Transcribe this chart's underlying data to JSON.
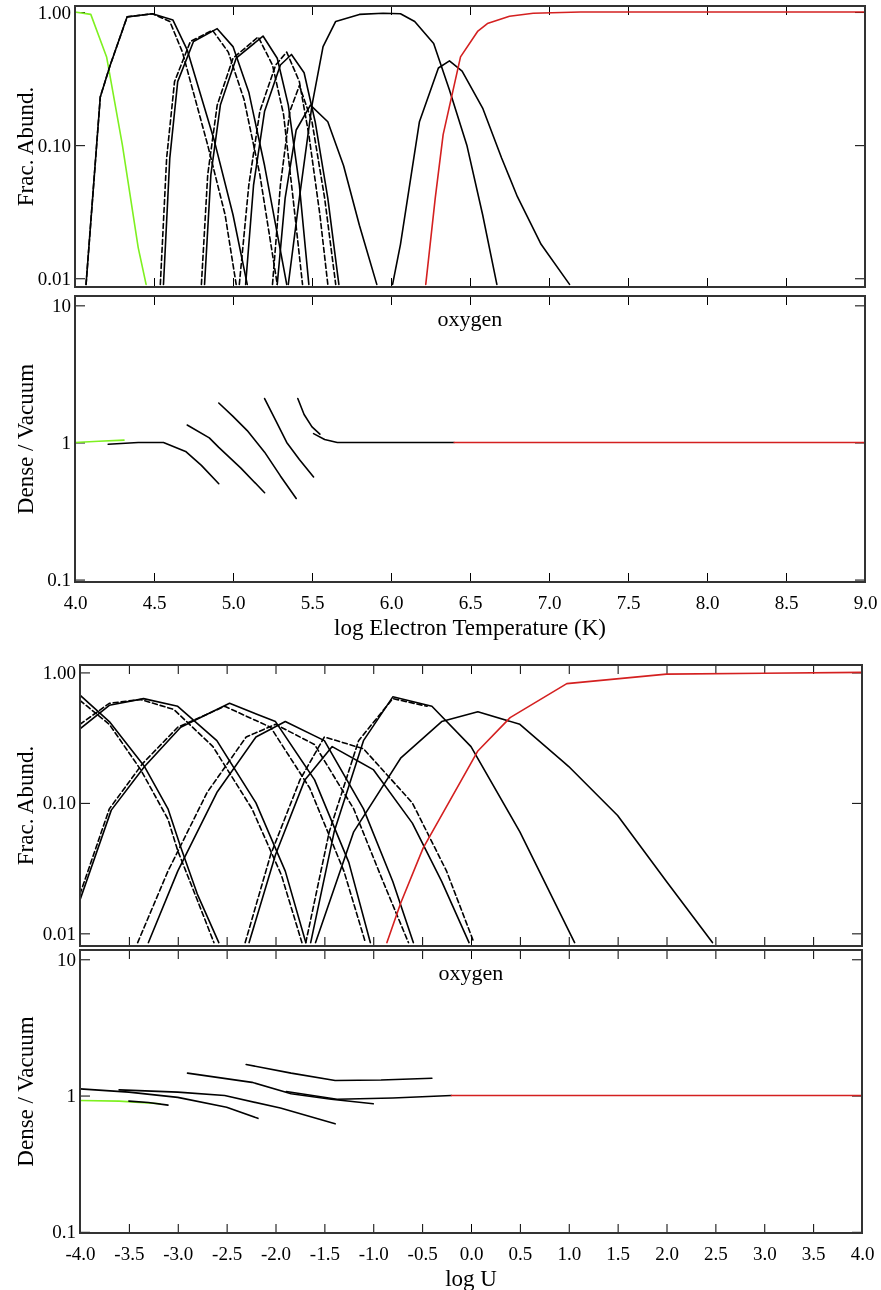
{
  "chart_data": [
    {
      "type": "line",
      "ylabel": "Frac. Abund.",
      "log": true,
      "xlim": [
        4,
        9
      ],
      "ylim": [
        0.0086,
        1.11
      ],
      "tick_labels": "y",
      "xticks": [
        {
          "value": 4,
          "label": null
        },
        {
          "value": 4.5,
          "label": null
        },
        {
          "value": 5,
          "label": null
        },
        {
          "value": 5.5,
          "label": null
        },
        {
          "value": 6,
          "label": null
        },
        {
          "value": 6.5,
          "label": null
        },
        {
          "value": 7,
          "label": null
        },
        {
          "value": 7.5,
          "label": null
        },
        {
          "value": 8,
          "label": null
        },
        {
          "value": 8.5,
          "label": null
        },
        {
          "value": 9,
          "label": null
        }
      ],
      "yticks": [
        {
          "value": 0.01,
          "label": "0.01"
        },
        {
          "value": 0.1,
          "label": "0.10"
        },
        {
          "value": 1,
          "label": "1.00"
        }
      ],
      "series": [
        {
          "color": "#7ef020",
          "line_style": "solid",
          "x": [
            4.0,
            4.1,
            4.2,
            4.3,
            4.4,
            4.45
          ],
          "values": [
            1.0,
            0.96,
            0.46,
            0.1,
            0.017,
            0.009
          ]
        },
        {
          "color": "#000000",
          "line_style": "solid",
          "x": [
            4.07,
            4.16,
            4.22,
            4.33,
            4.49,
            4.62,
            4.71,
            4.88,
            5.0,
            5.09
          ],
          "values": [
            0.009,
            0.23,
            0.39,
            0.92,
            0.97,
            0.87,
            0.52,
            0.11,
            0.03,
            0.009
          ]
        },
        {
          "color": "#000000",
          "line_style": "dashed",
          "x": [
            4.07,
            4.16,
            4.22,
            4.33,
            4.49,
            4.6,
            4.68,
            4.84,
            4.95,
            5.02
          ],
          "values": [
            0.009,
            0.23,
            0.39,
            0.92,
            0.97,
            0.85,
            0.5,
            0.1,
            0.03,
            0.009
          ]
        },
        {
          "color": "#000000",
          "line_style": "solid",
          "x": [
            4.56,
            4.6,
            4.65,
            4.75,
            4.9,
            5.0,
            5.1,
            5.2,
            5.34
          ],
          "values": [
            0.009,
            0.08,
            0.3,
            0.6,
            0.75,
            0.55,
            0.25,
            0.07,
            0.009
          ]
        },
        {
          "color": "#000000",
          "line_style": "dashed",
          "x": [
            4.54,
            4.58,
            4.63,
            4.73,
            4.87,
            4.97,
            5.07,
            5.17,
            5.28
          ],
          "values": [
            0.009,
            0.08,
            0.3,
            0.6,
            0.73,
            0.5,
            0.22,
            0.06,
            0.009
          ]
        },
        {
          "color": "#000000",
          "line_style": "solid",
          "x": [
            4.82,
            4.86,
            4.92,
            5.02,
            5.19,
            5.28,
            5.35,
            5.42,
            5.48
          ],
          "values": [
            0.009,
            0.06,
            0.2,
            0.45,
            0.66,
            0.45,
            0.2,
            0.05,
            0.009
          ]
        },
        {
          "color": "#000000",
          "line_style": "dashed",
          "x": [
            4.8,
            4.84,
            4.9,
            5.0,
            5.16,
            5.25,
            5.32,
            5.38,
            5.44
          ],
          "values": [
            0.009,
            0.06,
            0.2,
            0.45,
            0.65,
            0.4,
            0.17,
            0.04,
            0.009
          ]
        },
        {
          "color": "#000000",
          "line_style": "solid",
          "x": [
            5.08,
            5.13,
            5.2,
            5.3,
            5.37,
            5.45,
            5.52,
            5.6,
            5.67
          ],
          "values": [
            0.009,
            0.05,
            0.18,
            0.4,
            0.48,
            0.35,
            0.15,
            0.04,
            0.009
          ]
        },
        {
          "color": "#000000",
          "line_style": "dashed",
          "x": [
            5.04,
            5.1,
            5.17,
            5.27,
            5.34,
            5.42,
            5.48,
            5.55,
            5.6
          ],
          "values": [
            0.009,
            0.05,
            0.18,
            0.4,
            0.5,
            0.3,
            0.12,
            0.03,
            0.009
          ]
        },
        {
          "color": "#000000",
          "line_style": "solid",
          "x": [
            5.28,
            5.33,
            5.4,
            5.49,
            5.6,
            5.7,
            5.8,
            5.91
          ],
          "values": [
            0.009,
            0.04,
            0.13,
            0.2,
            0.15,
            0.07,
            0.025,
            0.009
          ]
        },
        {
          "color": "#000000",
          "line_style": "dashed",
          "x": [
            5.25,
            5.3,
            5.36,
            5.42,
            5.5,
            5.58,
            5.65
          ],
          "values": [
            0.009,
            0.05,
            0.18,
            0.28,
            0.15,
            0.04,
            0.009
          ]
        },
        {
          "color": "#000000",
          "line_style": "solid",
          "x": [
            5.35,
            5.42,
            5.5,
            5.57,
            5.65,
            5.8,
            5.95,
            6.06,
            6.15,
            6.27,
            6.37,
            6.48,
            6.58,
            6.67
          ],
          "values": [
            0.009,
            0.04,
            0.2,
            0.55,
            0.85,
            0.96,
            0.98,
            0.97,
            0.85,
            0.58,
            0.26,
            0.1,
            0.03,
            0.009
          ]
        },
        {
          "color": "#000000",
          "line_style": "solid",
          "x": [
            6.01,
            6.06,
            6.18,
            6.3,
            6.37,
            6.45,
            6.58,
            6.7,
            6.8,
            6.95,
            7.13
          ],
          "values": [
            0.009,
            0.018,
            0.15,
            0.38,
            0.43,
            0.36,
            0.19,
            0.08,
            0.041,
            0.018,
            0.009
          ]
        },
        {
          "color": "#d42020",
          "line_style": "solid",
          "x": [
            6.22,
            6.28,
            6.33,
            6.44,
            6.55,
            6.61,
            6.75,
            6.9,
            7.2,
            9.0
          ],
          "values": [
            0.009,
            0.04,
            0.12,
            0.46,
            0.72,
            0.82,
            0.93,
            0.98,
            1.0,
            1.0
          ]
        }
      ]
    },
    {
      "type": "line",
      "ylabel": "Dense / Vacuum",
      "xlabel": "log Electron Temperature (K)",
      "annotations": [
        "oxygen"
      ],
      "log": true,
      "xlim": [
        4,
        9
      ],
      "ylim": [
        0.096,
        11.7
      ],
      "xticks": [
        {
          "value": 4,
          "label": "4.0"
        },
        {
          "value": 4.5,
          "label": "4.5"
        },
        {
          "value": 5,
          "label": "5.0"
        },
        {
          "value": 5.5,
          "label": "5.5"
        },
        {
          "value": 6,
          "label": "6.0"
        },
        {
          "value": 6.5,
          "label": "6.5"
        },
        {
          "value": 7,
          "label": "7.0"
        },
        {
          "value": 7.5,
          "label": "7.5"
        },
        {
          "value": 8,
          "label": "8.0"
        },
        {
          "value": 8.5,
          "label": "8.5"
        },
        {
          "value": 9,
          "label": "9.0"
        }
      ],
      "yticks": [
        0.1,
        1,
        10
      ],
      "series": [
        {
          "color": "#7ef020",
          "line_style": "solid",
          "x": [
            4.0,
            4.15,
            4.31
          ],
          "values": [
            1.0,
            1.02,
            1.04
          ]
        },
        {
          "color": "#000000",
          "line_style": "solid",
          "x": [
            4.21,
            4.4,
            4.56,
            4.7,
            4.8,
            4.91
          ],
          "values": [
            0.97,
            1.0,
            1.0,
            0.86,
            0.68,
            0.5
          ]
        },
        {
          "color": "#000000",
          "line_style": "solid",
          "x": [
            4.71,
            4.85,
            4.91,
            5.05,
            5.2
          ],
          "values": [
            1.34,
            1.08,
            0.92,
            0.65,
            0.43
          ]
        },
        {
          "color": "#000000",
          "line_style": "solid",
          "x": [
            4.91,
            5.0,
            5.09,
            5.2,
            5.3,
            5.4
          ],
          "values": [
            1.94,
            1.55,
            1.22,
            0.85,
            0.57,
            0.39
          ]
        },
        {
          "color": "#000000",
          "line_style": "solid",
          "x": [
            5.2,
            5.27,
            5.34,
            5.42,
            5.51
          ],
          "values": [
            2.09,
            1.45,
            1.0,
            0.75,
            0.56
          ]
        },
        {
          "color": "#000000",
          "line_style": "solid",
          "x": [
            5.41,
            5.45,
            5.5,
            5.55
          ],
          "values": [
            2.09,
            1.6,
            1.3,
            1.15
          ]
        },
        {
          "color": "#000000",
          "line_style": "solid",
          "x": [
            5.51,
            5.58,
            5.66,
            6.0,
            6.4
          ],
          "values": [
            1.16,
            1.05,
            1.0,
            1.0,
            1.0
          ]
        },
        {
          "color": "#d42020",
          "line_style": "solid",
          "x": [
            6.4,
            9.0
          ],
          "values": [
            1.0,
            1.0
          ]
        }
      ]
    },
    {
      "type": "line",
      "ylabel": "Frac. Abund.",
      "log": true,
      "xlim": [
        -4,
        4
      ],
      "ylim": [
        0.008,
        1.14
      ],
      "tick_labels": "y",
      "xticks": [
        {
          "value": -4,
          "label": null
        },
        {
          "value": -3.5,
          "label": null
        },
        {
          "value": -3,
          "label": null
        },
        {
          "value": -2.5,
          "label": null
        },
        {
          "value": -2,
          "label": null
        },
        {
          "value": -1.5,
          "label": null
        },
        {
          "value": -1,
          "label": null
        },
        {
          "value": -0.5,
          "label": null
        },
        {
          "value": 0,
          "label": null
        },
        {
          "value": 0.5,
          "label": null
        },
        {
          "value": 1,
          "label": null
        },
        {
          "value": 1.5,
          "label": null
        },
        {
          "value": 2,
          "label": null
        },
        {
          "value": 2.5,
          "label": null
        },
        {
          "value": 3,
          "label": null
        },
        {
          "value": 3.5,
          "label": null
        },
        {
          "value": 4,
          "label": null
        }
      ],
      "yticks": [
        {
          "value": 0.01,
          "label": "0.01"
        },
        {
          "value": 0.1,
          "label": "0.10"
        },
        {
          "value": 1,
          "label": "1.00"
        }
      ],
      "series": [
        {
          "color": "#000000",
          "line_style": "solid",
          "x": [
            -4.0,
            -3.7,
            -3.34,
            -3.1,
            -2.97,
            -2.8,
            -2.58
          ],
          "values": [
            0.67,
            0.42,
            0.19,
            0.09,
            0.046,
            0.02,
            0.0085
          ]
        },
        {
          "color": "#000000",
          "line_style": "dashed",
          "x": [
            -4.0,
            -3.7,
            -3.38,
            -3.1,
            -3.0,
            -2.8,
            -2.63
          ],
          "values": [
            0.61,
            0.4,
            0.18,
            0.075,
            0.043,
            0.018,
            0.0085
          ]
        },
        {
          "color": "#000000",
          "line_style": "solid",
          "x": [
            -4.0,
            -3.7,
            -3.35,
            -3.0,
            -2.6,
            -2.2,
            -1.9,
            -1.69
          ],
          "values": [
            0.37,
            0.56,
            0.63,
            0.55,
            0.3,
            0.1,
            0.03,
            0.0085
          ]
        },
        {
          "color": "#000000",
          "line_style": "dashed",
          "x": [
            -4.0,
            -3.7,
            -3.38,
            -3.04,
            -2.64,
            -2.24,
            -1.94,
            -1.73
          ],
          "values": [
            0.4,
            0.58,
            0.62,
            0.52,
            0.27,
            0.09,
            0.028,
            0.0085
          ]
        },
        {
          "color": "#000000",
          "line_style": "solid",
          "x": [
            -4.0,
            -3.68,
            -3.34,
            -2.97,
            -2.47,
            -2.0,
            -1.6,
            -1.25,
            -1.03
          ],
          "values": [
            0.018,
            0.088,
            0.19,
            0.38,
            0.58,
            0.42,
            0.15,
            0.035,
            0.0085
          ]
        },
        {
          "color": "#000000",
          "line_style": "dashed",
          "x": [
            -4.0,
            -3.7,
            -3.36,
            -3.0,
            -2.52,
            -2.05,
            -1.65,
            -1.3,
            -1.08
          ],
          "values": [
            0.02,
            0.09,
            0.2,
            0.38,
            0.55,
            0.38,
            0.13,
            0.03,
            0.0085
          ]
        },
        {
          "color": "#000000",
          "line_style": "solid",
          "x": [
            -3.3,
            -3.0,
            -2.6,
            -2.2,
            -1.9,
            -1.5,
            -1.1,
            -0.8,
            -0.59
          ],
          "values": [
            0.0085,
            0.03,
            0.12,
            0.32,
            0.42,
            0.3,
            0.09,
            0.025,
            0.0085
          ]
        },
        {
          "color": "#000000",
          "line_style": "dashed",
          "x": [
            -3.41,
            -3.1,
            -2.7,
            -2.3,
            -2.0,
            -1.6,
            -1.2,
            -0.9,
            -0.64
          ],
          "values": [
            0.0085,
            0.03,
            0.12,
            0.32,
            0.4,
            0.28,
            0.09,
            0.025,
            0.0085
          ]
        },
        {
          "color": "#000000",
          "line_style": "solid",
          "x": [
            -2.27,
            -2.0,
            -1.7,
            -1.42,
            -1.0,
            -0.6,
            -0.3,
            -0.02
          ],
          "values": [
            0.0085,
            0.04,
            0.15,
            0.27,
            0.18,
            0.07,
            0.025,
            0.0085
          ]
        },
        {
          "color": "#000000",
          "line_style": "dashed",
          "x": [
            -2.31,
            -2.05,
            -1.75,
            -1.5,
            -1.1,
            -0.6,
            -0.25,
            0.03
          ],
          "values": [
            0.0085,
            0.04,
            0.15,
            0.32,
            0.26,
            0.1,
            0.03,
            0.0085
          ]
        },
        {
          "color": "#000000",
          "line_style": "solid",
          "x": [
            -1.64,
            -1.4,
            -1.1,
            -0.8,
            -0.4,
            0.0,
            0.5,
            1.06
          ],
          "values": [
            0.0085,
            0.06,
            0.3,
            0.65,
            0.55,
            0.27,
            0.06,
            0.0085
          ]
        },
        {
          "color": "#000000",
          "line_style": "dashed",
          "x": [
            -1.69,
            -1.45,
            -1.15,
            -0.8,
            -0.45
          ],
          "values": [
            0.0085,
            0.06,
            0.3,
            0.63,
            0.55
          ]
        },
        {
          "color": "#000000",
          "line_style": "solid",
          "x": [
            -1.59,
            -1.2,
            -0.72,
            -0.3,
            0.07,
            0.5,
            1.0,
            1.5,
            2.0,
            2.47
          ],
          "values": [
            0.0085,
            0.06,
            0.22,
            0.42,
            0.5,
            0.4,
            0.19,
            0.08,
            0.025,
            0.0085
          ]
        },
        {
          "color": "#d42020",
          "line_style": "solid",
          "x": [
            -0.86,
            -0.72,
            -0.49,
            0.07,
            0.4,
            0.98,
            2.0,
            4.0
          ],
          "values": [
            0.0085,
            0.017,
            0.045,
            0.25,
            0.45,
            0.82,
            0.97,
            1.0
          ]
        }
      ]
    },
    {
      "type": "line",
      "ylabel": "Dense / Vacuum",
      "xlabel": "log U",
      "annotations": [
        "oxygen"
      ],
      "log": true,
      "xlim": [
        -4,
        4
      ],
      "ylim": [
        0.098,
        11.7
      ],
      "xticks": [
        {
          "value": -4,
          "label": "-4.0"
        },
        {
          "value": -3.5,
          "label": "-3.5"
        },
        {
          "value": -3,
          "label": "-3.0"
        },
        {
          "value": -2.5,
          "label": "-2.5"
        },
        {
          "value": -2,
          "label": "-2.0"
        },
        {
          "value": -1.5,
          "label": "-1.5"
        },
        {
          "value": -1,
          "label": "-1.0"
        },
        {
          "value": -0.5,
          "label": "-0.5"
        },
        {
          "value": 0,
          "label": "0.0"
        },
        {
          "value": 0.5,
          "label": "0.5"
        },
        {
          "value": 1,
          "label": "1.0"
        },
        {
          "value": 1.5,
          "label": "1.5"
        },
        {
          "value": 2,
          "label": "2.0"
        },
        {
          "value": 2.5,
          "label": "2.5"
        },
        {
          "value": 3,
          "label": "3.0"
        },
        {
          "value": 3.5,
          "label": "3.5"
        },
        {
          "value": 4,
          "label": "4.0"
        }
      ],
      "yticks": [
        0.1,
        1,
        10
      ],
      "series": [
        {
          "color": "#7ef020",
          "line_style": "solid",
          "x": [
            -4.0,
            -3.6,
            -3.18
          ],
          "values": [
            0.92,
            0.91,
            0.87
          ]
        },
        {
          "color": "#000000",
          "line_style": "solid",
          "x": [
            -3.5,
            -3.3,
            -3.1
          ],
          "values": [
            0.91,
            0.89,
            0.85
          ]
        },
        {
          "color": "#000000",
          "line_style": "solid",
          "x": [
            -4.0,
            -3.5,
            -3.0,
            -2.5,
            -2.18
          ],
          "values": [
            1.12,
            1.06,
            0.97,
            0.82,
            0.68
          ]
        },
        {
          "color": "#000000",
          "line_style": "solid",
          "x": [
            -3.6,
            -3.0,
            -2.52,
            -1.95,
            -1.39
          ],
          "values": [
            1.1,
            1.06,
            1.0,
            0.81,
            0.62
          ]
        },
        {
          "color": "#000000",
          "line_style": "solid",
          "x": [
            -2.9,
            -2.24,
            -1.84,
            -1.43,
            -1.0
          ],
          "values": [
            1.46,
            1.25,
            1.03,
            0.94,
            0.87
          ]
        },
        {
          "color": "#000000",
          "line_style": "solid",
          "x": [
            -2.3,
            -1.84,
            -1.39,
            -0.92,
            -0.4
          ],
          "values": [
            1.69,
            1.46,
            1.29,
            1.3,
            1.34
          ]
        },
        {
          "color": "#000000",
          "line_style": "solid",
          "x": [
            -1.89,
            -1.37,
            -0.8,
            -0.2
          ],
          "values": [
            1.07,
            0.94,
            0.96,
            1.0
          ]
        },
        {
          "color": "#d42020",
          "line_style": "solid",
          "x": [
            -0.2,
            4.0
          ],
          "values": [
            1.0,
            1.0
          ]
        }
      ]
    }
  ]
}
